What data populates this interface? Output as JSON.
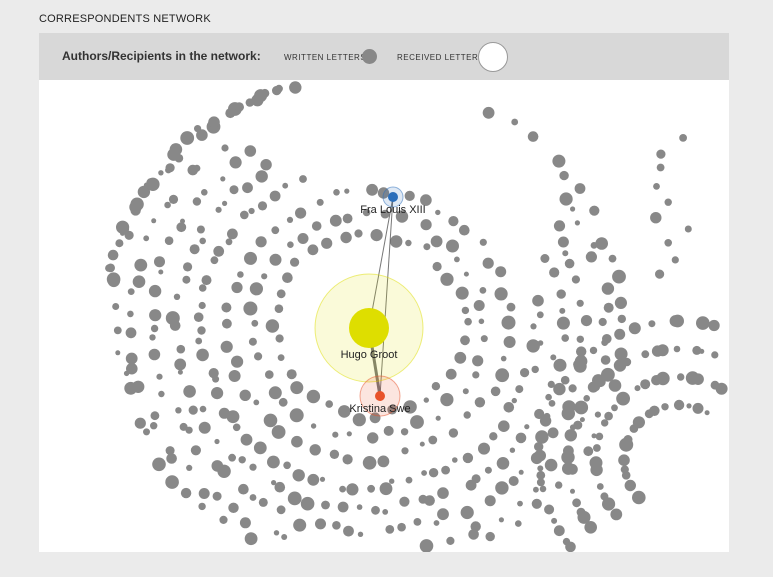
{
  "page": {
    "title": "CORRESPONDENTS NETWORK"
  },
  "legend": {
    "heading": "Authors/Recipients in the network:",
    "written_label": "WRITTEN LETTERS",
    "received_label": "RECEIVED LETTERS"
  },
  "colors": {
    "node": "#888888",
    "highlight_yellow": "#dede00",
    "highlight_blue": "#2a6ebb",
    "highlight_red": "#e8522a",
    "link": "#555555"
  },
  "network": {
    "nodes": [
      {
        "id": "hugo",
        "label": "Hugo Groot",
        "color": "#dede00",
        "halo": true
      },
      {
        "id": "louis",
        "label": "Fra Louis XIII",
        "color": "#2a6ebb",
        "halo": true
      },
      {
        "id": "kristina",
        "label": "Kristina Swe",
        "color": "#e8522a",
        "halo": true
      }
    ],
    "links": [
      {
        "from": "louis",
        "to": "hugo"
      },
      {
        "from": "hugo",
        "to": "kristina"
      },
      {
        "from": "louis",
        "to": "kristina"
      }
    ]
  }
}
